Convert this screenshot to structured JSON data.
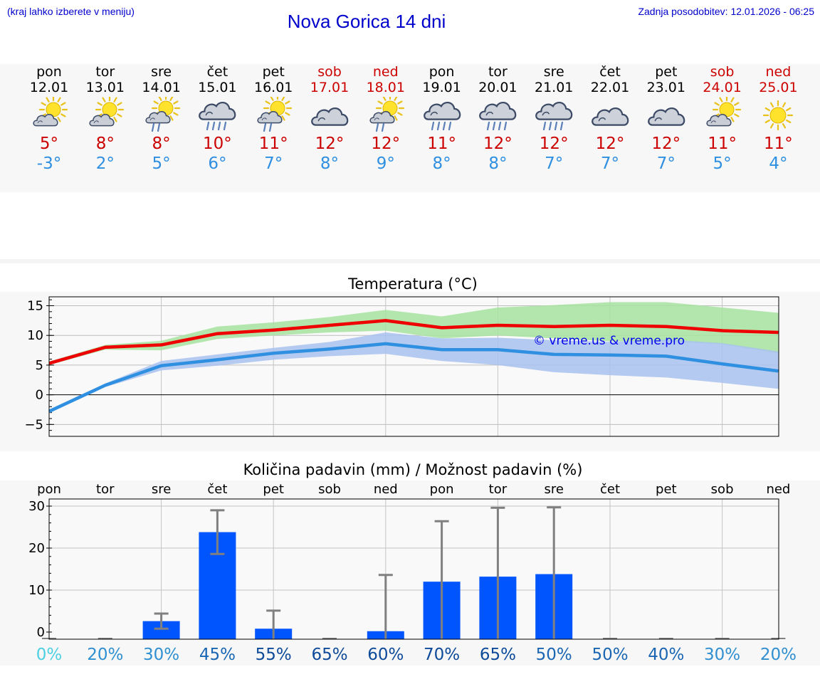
{
  "header": {
    "hint": "(kraj lahko izberete v meniju)",
    "title": "Nova Gorica 14 dni",
    "update": "Zadnja posodobitev: 12.01.2026 - 06:25"
  },
  "colors": {
    "title_blue": "#0000cc",
    "weekend_red": "#cc0000",
    "max_red": "#ee0000",
    "min_blue": "#2f8fe0",
    "max_band": "#a6e3a0",
    "min_band": "#a8c2f0",
    "bar_blue": "#0055ff",
    "err_gray": "#808080"
  },
  "days": [
    {
      "name": "pon",
      "date": "12.01",
      "weekend": false,
      "icon": "partly-cloudy-icon",
      "max": "5°",
      "min": "-3°"
    },
    {
      "name": "tor",
      "date": "13.01",
      "weekend": false,
      "icon": "partly-cloudy-icon",
      "max": "8°",
      "min": "2°"
    },
    {
      "name": "sre",
      "date": "14.01",
      "weekend": false,
      "icon": "sun-shower-icon",
      "max": "8°",
      "min": "5°"
    },
    {
      "name": "čet",
      "date": "15.01",
      "weekend": false,
      "icon": "rain-icon",
      "max": "10°",
      "min": "6°"
    },
    {
      "name": "pet",
      "date": "16.01",
      "weekend": false,
      "icon": "sun-shower-icon",
      "max": "11°",
      "min": "7°"
    },
    {
      "name": "sob",
      "date": "17.01",
      "weekend": true,
      "icon": "cloudy-icon",
      "max": "12°",
      "min": "8°"
    },
    {
      "name": "ned",
      "date": "18.01",
      "weekend": true,
      "icon": "sun-shower-icon",
      "max": "12°",
      "min": "9°"
    },
    {
      "name": "pon",
      "date": "19.01",
      "weekend": false,
      "icon": "rain-icon",
      "max": "11°",
      "min": "8°"
    },
    {
      "name": "tor",
      "date": "20.01",
      "weekend": false,
      "icon": "rain-icon",
      "max": "12°",
      "min": "8°"
    },
    {
      "name": "sre",
      "date": "21.01",
      "weekend": false,
      "icon": "rain-icon",
      "max": "12°",
      "min": "7°"
    },
    {
      "name": "čet",
      "date": "22.01",
      "weekend": false,
      "icon": "cloudy-icon",
      "max": "12°",
      "min": "7°"
    },
    {
      "name": "pet",
      "date": "23.01",
      "weekend": false,
      "icon": "cloudy-icon",
      "max": "12°",
      "min": "7°"
    },
    {
      "name": "sob",
      "date": "24.01",
      "weekend": true,
      "icon": "partly-cloudy-icon",
      "max": "11°",
      "min": "5°"
    },
    {
      "name": "ned",
      "date": "25.01",
      "weekend": true,
      "icon": "sun-icon",
      "max": "11°",
      "min": "4°"
    }
  ],
  "chart_data": [
    {
      "type": "line",
      "title": "Temperatura (°C)",
      "watermark": "© vreme.us & vreme.pro",
      "ylim": [
        -7,
        16.5
      ],
      "yticks": [
        15,
        10,
        5,
        0,
        -5
      ],
      "ytick_labels": [
        "15",
        "10",
        "5",
        "0",
        "−5"
      ],
      "grid": true,
      "x": [
        0,
        1,
        2,
        3,
        4,
        5,
        6,
        7,
        8,
        9,
        10,
        11,
        12,
        13
      ],
      "series": [
        {
          "name": "max",
          "values": [
            5.3,
            8.0,
            8.4,
            10.3,
            10.9,
            11.7,
            12.5,
            11.3,
            11.7,
            11.5,
            11.7,
            11.5,
            10.8,
            10.5
          ]
        },
        {
          "name": "min",
          "values": [
            -2.8,
            1.6,
            4.9,
            5.9,
            7.0,
            7.7,
            8.6,
            7.6,
            7.6,
            6.8,
            6.7,
            6.5,
            5.2,
            4.0
          ]
        }
      ],
      "bands": [
        {
          "name": "max_range",
          "low": [
            5.0,
            7.6,
            7.5,
            9.4,
            10.0,
            10.5,
            10.8,
            9.5,
            10.0,
            9.5,
            9.0,
            9.0,
            8.5,
            7.0
          ],
          "high": [
            5.6,
            8.4,
            9.1,
            11.5,
            12.2,
            13.1,
            14.3,
            13.2,
            14.7,
            15.1,
            15.6,
            15.6,
            14.7,
            13.8
          ]
        },
        {
          "name": "min_range",
          "low": [
            -3.1,
            1.3,
            4.1,
            4.9,
            5.9,
            6.5,
            6.9,
            5.7,
            5.0,
            3.8,
            3.3,
            2.9,
            2.0,
            1.0
          ],
          "high": [
            -2.5,
            1.9,
            5.7,
            6.8,
            7.9,
            8.9,
            10.5,
            9.5,
            9.6,
            9.2,
            8.9,
            9.3,
            8.7,
            7.3
          ]
        }
      ]
    },
    {
      "type": "bar",
      "title": "Količina padavin (mm) / Možnost padavin (%)",
      "ylim": [
        -1.7,
        31.7
      ],
      "yticks": [
        30,
        20,
        10,
        0
      ],
      "grid": true,
      "categories": [
        "pon",
        "tor",
        "sre",
        "čet",
        "pet",
        "sob",
        "ned",
        "pon",
        "tor",
        "sre",
        "čet",
        "pet",
        "sob",
        "ned"
      ],
      "values": [
        0,
        0,
        2.6,
        23.8,
        0.8,
        0,
        0.2,
        12.0,
        13.2,
        13.8,
        0,
        0,
        0,
        0
      ],
      "err_low": [
        0,
        0,
        0.8,
        18.6,
        0,
        0,
        0,
        0,
        0,
        0,
        0,
        0,
        0,
        0
      ],
      "err_high": [
        0,
        0,
        4.4,
        29.0,
        5.1,
        0,
        13.6,
        26.4,
        29.6,
        29.7,
        0,
        0,
        0,
        0
      ],
      "probabilities": [
        "0%",
        "20%",
        "30%",
        "45%",
        "55%",
        "65%",
        "60%",
        "70%",
        "65%",
        "50%",
        "50%",
        "40%",
        "30%",
        "20%"
      ],
      "probability_values": [
        0,
        20,
        30,
        45,
        55,
        65,
        60,
        70,
        65,
        50,
        50,
        40,
        30,
        20
      ]
    }
  ]
}
